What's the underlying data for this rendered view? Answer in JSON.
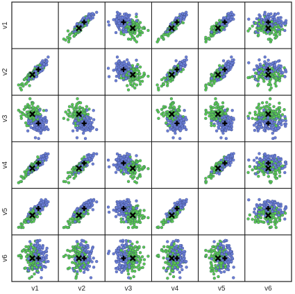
{
  "chart_data": {
    "type": "scatter",
    "subtype": "scatterplot-matrix",
    "title": "",
    "variables": [
      "v1",
      "v2",
      "v3",
      "v4",
      "v5",
      "v6"
    ],
    "diagonal": "empty",
    "grid": false,
    "legend": "none",
    "points_per_group": 120,
    "colors": {
      "group1": "#6b7fd7",
      "group2": "#59c94f",
      "outline": "#1a1a1a",
      "centroid": "#000000"
    },
    "groups": [
      {
        "color_key": "group1",
        "means": {
          "v1": 0.58,
          "v2": 0.56,
          "v3": 0.38,
          "v4": 0.55,
          "v5": 0.58,
          "v6": 0.5
        }
      },
      {
        "color_key": "group2",
        "means": {
          "v1": 0.43,
          "v2": 0.43,
          "v3": 0.61,
          "v4": 0.42,
          "v5": 0.41,
          "v6": 0.5
        }
      }
    ],
    "correlations": {
      "v1|v2": 0.9,
      "v1|v3": -0.1,
      "v1|v4": 0.9,
      "v1|v5": 0.85,
      "v1|v6": 0.0,
      "v2|v3": -0.05,
      "v2|v4": 0.88,
      "v2|v5": 0.82,
      "v2|v6": 0.0,
      "v3|v4": -0.08,
      "v3|v5": -0.05,
      "v3|v6": 0.0,
      "v4|v5": 0.85,
      "v4|v6": 0.0,
      "v5|v6": 0.0
    },
    "spread": {
      "v1": 0.12,
      "v2": 0.12,
      "v3": 0.12,
      "v4": 0.12,
      "v5": 0.12,
      "v6": 0.19
    },
    "centroid_markers": [
      "plus",
      "x"
    ]
  }
}
